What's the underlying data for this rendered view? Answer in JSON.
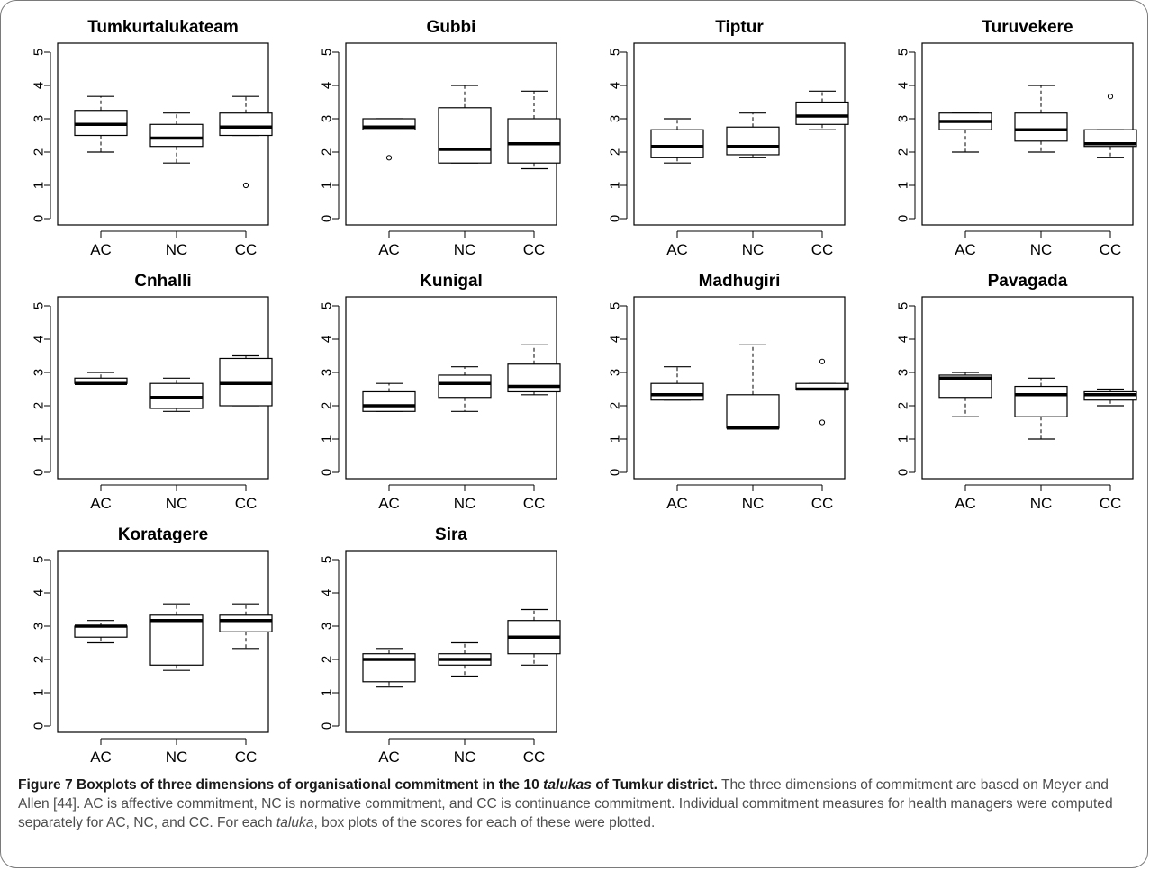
{
  "chart_data": [
    {
      "type": "boxplot",
      "title": "Tumkurtalukateam",
      "ylim": [
        0,
        5
      ],
      "yticks": [
        0,
        1,
        2,
        3,
        4,
        5
      ],
      "categories": [
        "AC",
        "NC",
        "CC"
      ],
      "boxes": [
        {
          "min": 2.0,
          "q1": 2.5,
          "median": 2.83,
          "q3": 3.25,
          "max": 3.67,
          "outliers": []
        },
        {
          "min": 1.67,
          "q1": 2.17,
          "median": 2.42,
          "q3": 2.83,
          "max": 3.17,
          "outliers": []
        },
        {
          "min": 2.5,
          "q1": 2.5,
          "median": 2.75,
          "q3": 3.17,
          "max": 3.67,
          "outliers": [
            1.0
          ]
        }
      ]
    },
    {
      "type": "boxplot",
      "title": "Gubbi",
      "ylim": [
        0,
        5
      ],
      "yticks": [
        0,
        1,
        2,
        3,
        4,
        5
      ],
      "categories": [
        "AC",
        "NC",
        "CC"
      ],
      "boxes": [
        {
          "min": 2.67,
          "q1": 2.67,
          "median": 2.75,
          "q3": 3.0,
          "max": 3.0,
          "outliers": [
            1.83
          ]
        },
        {
          "min": 1.67,
          "q1": 1.67,
          "median": 2.08,
          "q3": 3.33,
          "max": 4.0,
          "outliers": []
        },
        {
          "min": 1.5,
          "q1": 1.67,
          "median": 2.25,
          "q3": 3.0,
          "max": 3.83,
          "outliers": []
        }
      ]
    },
    {
      "type": "boxplot",
      "title": "Tiptur",
      "ylim": [
        0,
        5
      ],
      "yticks": [
        0,
        1,
        2,
        3,
        4,
        5
      ],
      "categories": [
        "AC",
        "NC",
        "CC"
      ],
      "boxes": [
        {
          "min": 1.67,
          "q1": 1.83,
          "median": 2.17,
          "q3": 2.67,
          "max": 3.0,
          "outliers": []
        },
        {
          "min": 1.83,
          "q1": 1.92,
          "median": 2.17,
          "q3": 2.75,
          "max": 3.17,
          "outliers": []
        },
        {
          "min": 2.67,
          "q1": 2.83,
          "median": 3.08,
          "q3": 3.5,
          "max": 3.83,
          "outliers": []
        }
      ]
    },
    {
      "type": "boxplot",
      "title": "Turuvekere",
      "ylim": [
        0,
        5
      ],
      "yticks": [
        0,
        1,
        2,
        3,
        4,
        5
      ],
      "categories": [
        "AC",
        "NC",
        "CC"
      ],
      "boxes": [
        {
          "min": 2.0,
          "q1": 2.67,
          "median": 2.92,
          "q3": 3.17,
          "max": 3.17,
          "outliers": []
        },
        {
          "min": 2.0,
          "q1": 2.33,
          "median": 2.67,
          "q3": 3.17,
          "max": 4.0,
          "outliers": []
        },
        {
          "min": 1.83,
          "q1": 2.17,
          "median": 2.25,
          "q3": 2.67,
          "max": 2.67,
          "outliers": [
            3.67
          ]
        }
      ]
    },
    {
      "type": "boxplot",
      "title": "Cnhalli",
      "ylim": [
        0,
        5
      ],
      "yticks": [
        0,
        1,
        2,
        3,
        4,
        5
      ],
      "categories": [
        "AC",
        "NC",
        "CC"
      ],
      "boxes": [
        {
          "min": 2.67,
          "q1": 2.67,
          "median": 2.67,
          "q3": 2.83,
          "max": 3.0,
          "outliers": []
        },
        {
          "min": 1.83,
          "q1": 1.92,
          "median": 2.25,
          "q3": 2.67,
          "max": 2.83,
          "outliers": []
        },
        {
          "min": 2.0,
          "q1": 2.0,
          "median": 2.67,
          "q3": 3.42,
          "max": 3.5,
          "outliers": []
        }
      ]
    },
    {
      "type": "boxplot",
      "title": "Kunigal",
      "ylim": [
        0,
        5
      ],
      "yticks": [
        0,
        1,
        2,
        3,
        4,
        5
      ],
      "categories": [
        "AC",
        "NC",
        "CC"
      ],
      "boxes": [
        {
          "min": 1.83,
          "q1": 1.83,
          "median": 2.0,
          "q3": 2.42,
          "max": 2.67,
          "outliers": []
        },
        {
          "min": 1.83,
          "q1": 2.25,
          "median": 2.67,
          "q3": 2.92,
          "max": 3.17,
          "outliers": []
        },
        {
          "min": 2.33,
          "q1": 2.42,
          "median": 2.58,
          "q3": 3.25,
          "max": 3.83,
          "outliers": []
        }
      ]
    },
    {
      "type": "boxplot",
      "title": "Madhugiri",
      "ylim": [
        0,
        5
      ],
      "yticks": [
        0,
        1,
        2,
        3,
        4,
        5
      ],
      "categories": [
        "AC",
        "NC",
        "CC"
      ],
      "boxes": [
        {
          "min": 2.17,
          "q1": 2.17,
          "median": 2.33,
          "q3": 2.67,
          "max": 3.17,
          "outliers": []
        },
        {
          "min": 1.33,
          "q1": 1.33,
          "median": 1.33,
          "q3": 2.33,
          "max": 3.83,
          "outliers": []
        },
        {
          "min": 2.5,
          "q1": 2.5,
          "median": 2.5,
          "q3": 2.67,
          "max": 2.67,
          "outliers": [
            3.33,
            1.5
          ]
        }
      ]
    },
    {
      "type": "boxplot",
      "title": "Pavagada",
      "ylim": [
        0,
        5
      ],
      "yticks": [
        0,
        1,
        2,
        3,
        4,
        5
      ],
      "categories": [
        "AC",
        "NC",
        "CC"
      ],
      "boxes": [
        {
          "min": 1.67,
          "q1": 2.25,
          "median": 2.83,
          "q3": 2.92,
          "max": 3.0,
          "outliers": []
        },
        {
          "min": 1.0,
          "q1": 1.67,
          "median": 2.33,
          "q3": 2.58,
          "max": 2.83,
          "outliers": []
        },
        {
          "min": 2.0,
          "q1": 2.17,
          "median": 2.33,
          "q3": 2.42,
          "max": 2.5,
          "outliers": []
        }
      ]
    },
    {
      "type": "boxplot",
      "title": "Koratagere",
      "ylim": [
        0,
        5
      ],
      "yticks": [
        0,
        1,
        2,
        3,
        4,
        5
      ],
      "categories": [
        "AC",
        "NC",
        "CC"
      ],
      "boxes": [
        {
          "min": 2.5,
          "q1": 2.67,
          "median": 3.0,
          "q3": 3.0,
          "max": 3.17,
          "outliers": []
        },
        {
          "min": 1.67,
          "q1": 1.83,
          "median": 3.17,
          "q3": 3.33,
          "max": 3.67,
          "outliers": []
        },
        {
          "min": 2.33,
          "q1": 2.83,
          "median": 3.17,
          "q3": 3.33,
          "max": 3.67,
          "outliers": []
        }
      ]
    },
    {
      "type": "boxplot",
      "title": "Sira",
      "ylim": [
        0,
        5
      ],
      "yticks": [
        0,
        1,
        2,
        3,
        4,
        5
      ],
      "categories": [
        "AC",
        "NC",
        "CC"
      ],
      "boxes": [
        {
          "min": 1.17,
          "q1": 1.33,
          "median": 2.0,
          "q3": 2.17,
          "max": 2.33,
          "outliers": []
        },
        {
          "min": 1.5,
          "q1": 1.83,
          "median": 2.0,
          "q3": 2.17,
          "max": 2.5,
          "outliers": []
        },
        {
          "min": 1.83,
          "q1": 2.17,
          "median": 2.67,
          "q3": 3.17,
          "max": 3.5,
          "outliers": []
        }
      ]
    }
  ],
  "caption": {
    "label": "Figure 7 Boxplots of three dimensions of organisational commitment in the 10 ",
    "label_italic": "talukas",
    "label_end": " of Tumkur district.",
    "text1": " The three dimensions of commitment are based on Meyer and Allen [44]. AC is affective commitment, NC is normative commitment, and CC is continuance commitment. Individual commitment measures for health managers were computed separately for AC, NC, and CC. For each ",
    "text_italic": "taluka",
    "text2": ", box plots of the scores for each of these were plotted."
  }
}
